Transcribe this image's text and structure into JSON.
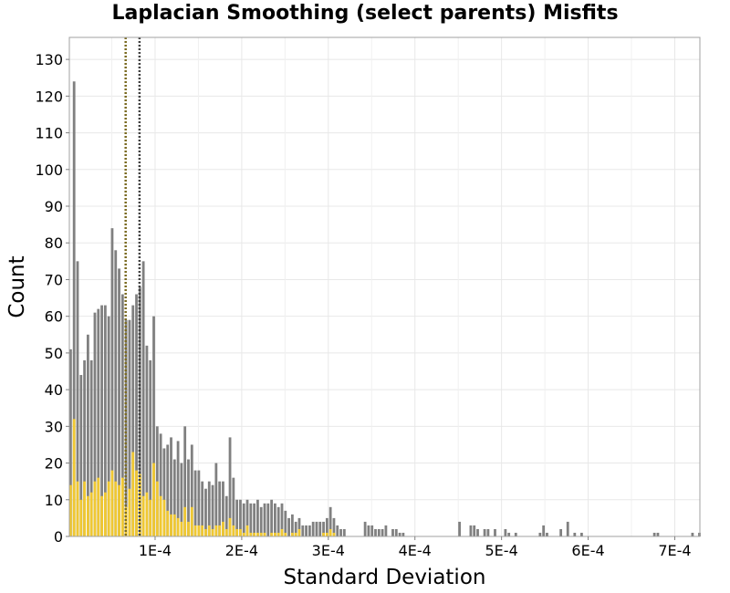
{
  "chart_data": {
    "type": "bar",
    "title": "Laplacian Smoothing (select parents) Misfits",
    "xlabel": "Standard Deviation",
    "ylabel": "Count",
    "xlim": [
      1e-06,
      0.000729
    ],
    "ylim": [
      0,
      136
    ],
    "x_ticks": [
      0.0001,
      0.0002,
      0.0003,
      0.0004,
      0.0005,
      0.0006,
      0.0007
    ],
    "x_tick_labels": [
      "1E-4",
      "2E-4",
      "3E-4",
      "4E-4",
      "5E-4",
      "6E-4",
      "7E-4"
    ],
    "y_ticks": [
      0,
      10,
      20,
      30,
      40,
      50,
      60,
      70,
      80,
      90,
      100,
      110,
      120,
      130
    ],
    "y_tick_labels": [
      "0",
      "10",
      "20",
      "30",
      "40",
      "50",
      "60",
      "70",
      "80",
      "90",
      "100",
      "110",
      "120",
      "130"
    ],
    "grid": true,
    "bin_width": 4e-06,
    "bin_start": 1e-06,
    "series": [
      {
        "color": "#808080",
        "values": [
          51,
          124,
          75,
          44,
          48,
          55,
          48,
          61,
          62,
          63,
          63,
          60,
          84,
          78,
          73,
          66,
          59,
          59,
          63,
          66,
          68,
          75,
          52,
          48,
          60,
          30,
          28,
          24,
          25,
          27,
          21,
          26,
          20,
          30,
          21,
          25,
          18,
          18,
          15,
          13,
          15,
          14,
          20,
          15,
          15,
          11,
          27,
          16,
          10,
          10,
          9,
          10,
          9,
          9,
          10,
          8,
          9,
          9,
          10,
          9,
          8,
          9,
          7,
          5,
          6,
          4,
          5,
          3,
          3,
          3,
          4,
          4,
          4,
          4,
          5,
          8,
          5,
          3,
          2,
          2,
          0,
          0,
          0,
          0,
          0,
          4,
          3,
          3,
          2,
          2,
          2,
          3,
          0,
          2,
          2,
          1,
          1,
          0,
          0,
          0,
          0,
          0,
          0,
          0,
          0,
          0,
          0,
          0,
          0,
          0,
          0,
          0,
          0,
          0,
          0,
          0,
          0,
          0,
          0,
          0,
          0,
          0,
          0,
          0,
          0,
          0,
          0,
          0,
          0,
          0,
          0,
          0,
          0,
          0,
          0,
          0,
          0,
          0,
          0,
          0,
          0,
          0,
          0,
          0,
          0,
          0,
          0,
          0,
          0,
          0,
          0,
          0,
          0,
          0,
          0,
          0,
          0,
          0,
          0,
          0,
          0,
          0,
          0,
          0,
          0,
          0,
          0,
          0,
          0,
          0,
          0,
          0,
          0,
          0,
          0,
          0,
          0,
          0,
          0,
          0,
          0,
          0
        ],
        "sparse": [
          {
            "x": 0.00045,
            "v": 4
          },
          {
            "x": 0.000463,
            "v": 3
          },
          {
            "x": 0.000467,
            "v": 3
          },
          {
            "x": 0.000471,
            "v": 2
          },
          {
            "x": 0.000479,
            "v": 2
          },
          {
            "x": 0.000483,
            "v": 2
          },
          {
            "x": 0.000491,
            "v": 2
          },
          {
            "x": 0.000503,
            "v": 2
          },
          {
            "x": 0.000507,
            "v": 1
          },
          {
            "x": 0.000515,
            "v": 1
          },
          {
            "x": 0.000543,
            "v": 1
          },
          {
            "x": 0.000547,
            "v": 3
          },
          {
            "x": 0.000551,
            "v": 1
          },
          {
            "x": 0.000567,
            "v": 2
          },
          {
            "x": 0.000575,
            "v": 4
          },
          {
            "x": 0.000583,
            "v": 1
          },
          {
            "x": 0.000591,
            "v": 1
          },
          {
            "x": 0.000675,
            "v": 1
          },
          {
            "x": 0.000679,
            "v": 1
          },
          {
            "x": 0.000719,
            "v": 1
          },
          {
            "x": 0.000727,
            "v": 1
          }
        ]
      },
      {
        "color": "#f0c832",
        "values": [
          14,
          32,
          15,
          10,
          15,
          11,
          12,
          15,
          16,
          11,
          12,
          15,
          18,
          15,
          14,
          16,
          8,
          13,
          23,
          18,
          17,
          11,
          12,
          10,
          20,
          15,
          11,
          10,
          7,
          6,
          6,
          5,
          4,
          8,
          4,
          8,
          3,
          3,
          3,
          2,
          3,
          2,
          3,
          3,
          4,
          2,
          5,
          3,
          2,
          2,
          1,
          3,
          1,
          1,
          1,
          1,
          1,
          0,
          1,
          1,
          1,
          2,
          1,
          0,
          1,
          1,
          2,
          0,
          0,
          0,
          0,
          0,
          0,
          1,
          1,
          2,
          1,
          0,
          0,
          0
        ]
      }
    ],
    "vlines": [
      {
        "x": 6.6e-05,
        "color": "#7a6a20"
      },
      {
        "x": 8.2e-05,
        "color": "#404040"
      }
    ]
  }
}
